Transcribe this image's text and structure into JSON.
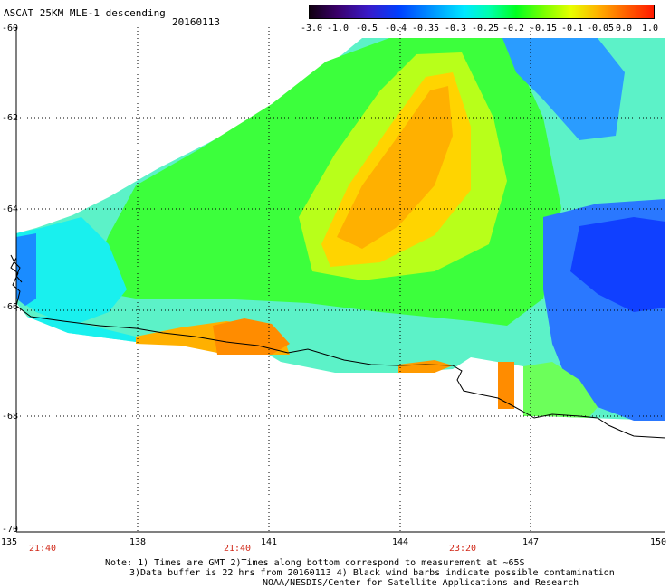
{
  "header": {
    "title": "ASCAT 25KM MLE-1 descending",
    "date": "20160113"
  },
  "colorbar": {
    "labels": [
      "-3.0",
      "-1.0",
      "-0.5",
      "-0.4",
      "-0.35",
      "-0.3",
      "-0.25",
      "-0.2",
      "-0.15",
      "-0.1",
      "-0.05",
      "0.0",
      "1.0"
    ]
  },
  "axes": {
    "lat_labels": [
      "-60",
      "-62",
      "-64",
      "-66",
      "-68",
      "-70"
    ],
    "lon_labels": [
      "135",
      "138",
      "141",
      "144",
      "147",
      "150"
    ],
    "time_labels": [
      "21:40",
      "21:40",
      "23:20"
    ]
  },
  "notes": {
    "line1": "Note: 1) Times are GMT 2)Times along bottom correspond to measurement at ~65S",
    "line2": "3)Data buffer is 22 hrs from 20160113 4) Black wind barbs indicate possible contamination",
    "line3": "NOAA/NESDIS/Center for Satellite Applications and Research"
  },
  "colors": {
    "time_label": "#d12a1a",
    "gridline": "#000000",
    "coastline": "#000000"
  }
}
